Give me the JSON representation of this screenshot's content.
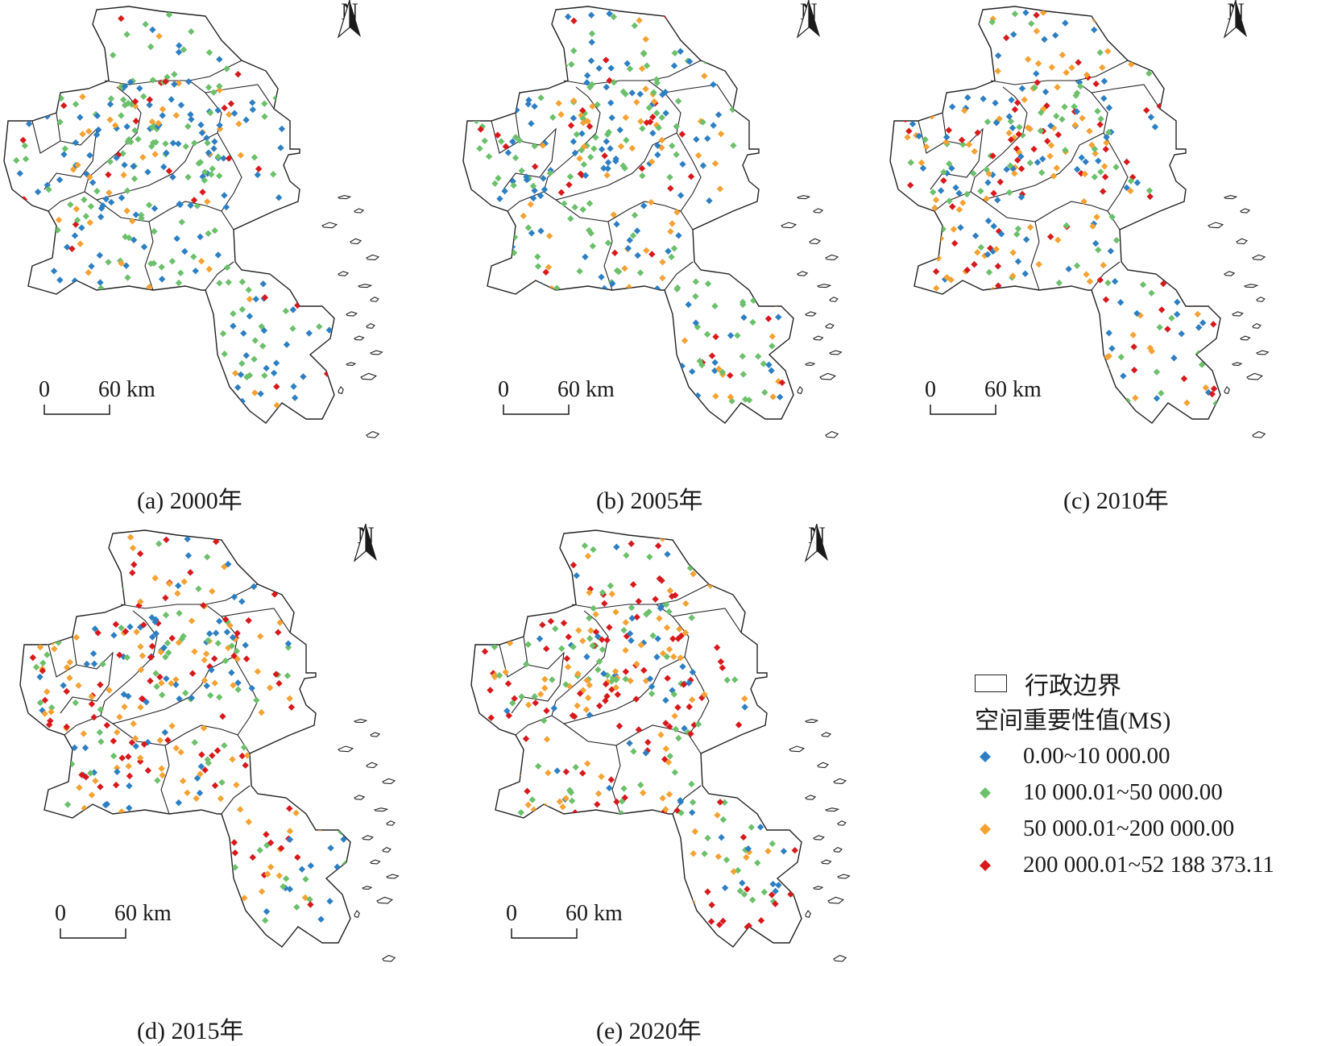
{
  "colors": {
    "class_1": "#2e7fc2",
    "class_2": "#6cc06c",
    "class_3": "#f4a233",
    "class_4": "#d7191c",
    "boundary": "#222222"
  },
  "panels": [
    {
      "caption": "(a) 2000年",
      "mix": [
        0.38,
        0.38,
        0.16,
        0.08
      ]
    },
    {
      "caption": "(b) 2005年",
      "mix": [
        0.3,
        0.38,
        0.18,
        0.14
      ]
    },
    {
      "caption": "(c) 2010年",
      "mix": [
        0.24,
        0.26,
        0.26,
        0.24
      ]
    },
    {
      "caption": "(d) 2015年",
      "mix": [
        0.22,
        0.24,
        0.28,
        0.26
      ]
    },
    {
      "caption": "(e) 2020年",
      "mix": [
        0.18,
        0.24,
        0.26,
        0.32
      ]
    }
  ],
  "north_arrow": {
    "label": "N"
  },
  "scale_bar": {
    "start": "0",
    "end": "60 km"
  },
  "legend": {
    "boundary_label": "行政边界",
    "title": "空间重要性值(MS)",
    "classes": [
      {
        "label": "0.00~10 000.00",
        "color": "#2e7fc2"
      },
      {
        "label": "10 000.01~50 000.00",
        "color": "#6cc06c"
      },
      {
        "label": "50 000.01~200 000.00",
        "color": "#f4a233"
      },
      {
        "label": "200 000.01~52 188 373.11",
        "color": "#d7191c"
      }
    ]
  }
}
